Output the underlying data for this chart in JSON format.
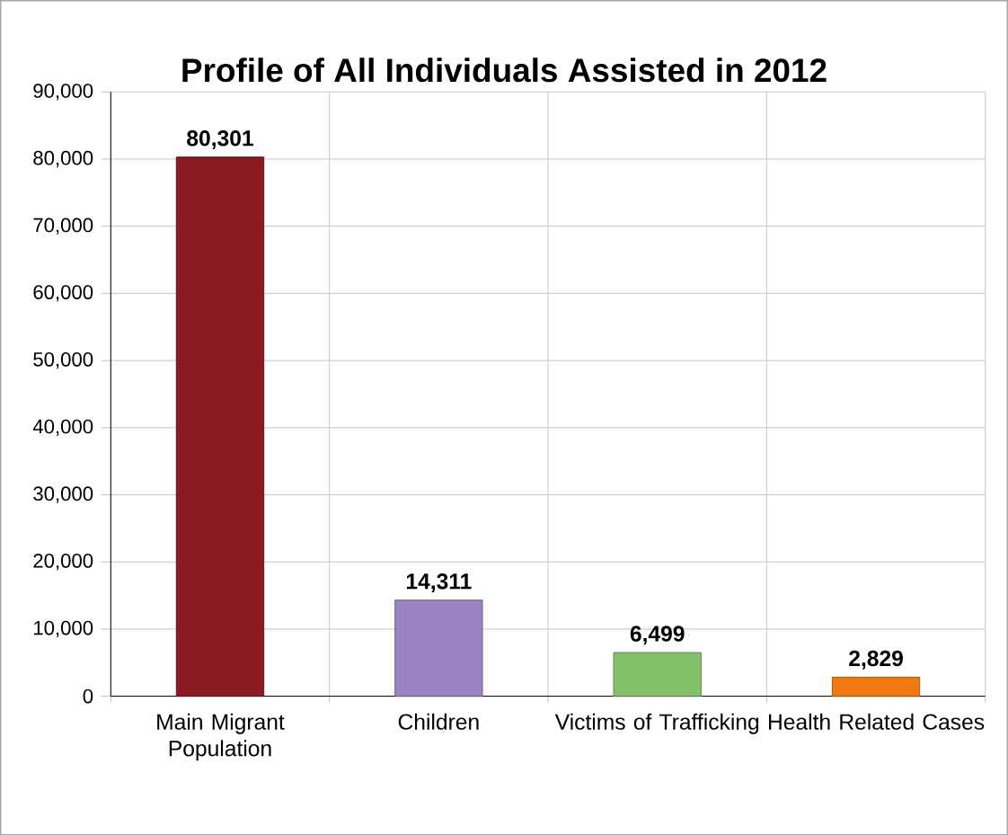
{
  "chart_data": {
    "type": "bar",
    "title": "Profile of All Individuals Assisted in 2012",
    "categories": [
      "Main Migrant Population",
      "Children",
      "Victims of Trafficking",
      "Health Related Cases"
    ],
    "values": [
      80301,
      14311,
      6499,
      2829
    ],
    "colors": [
      "#8b1a22",
      "#9b85c0",
      "#82c06a",
      "#f07a10"
    ],
    "value_labels": [
      "80,301",
      "14,311",
      "6,499",
      "2,829"
    ],
    "ylim": [
      0,
      90000
    ],
    "yticks": [
      0,
      {
        "value": 10000,
        "label": "10,000"
      },
      {
        "value": 20000,
        "label": "20,000"
      },
      {
        "value": 30000,
        "label": "30,000"
      },
      {
        "value": 40000,
        "label": "40,000"
      },
      {
        "value": 50000,
        "label": "50,000"
      },
      {
        "value": 60000,
        "label": "60,000"
      },
      {
        "value": 70000,
        "label": "70,000"
      },
      {
        "value": 80000,
        "label": "80,000"
      },
      {
        "value": 90000,
        "label": "90,000"
      }
    ],
    "grid": true
  }
}
